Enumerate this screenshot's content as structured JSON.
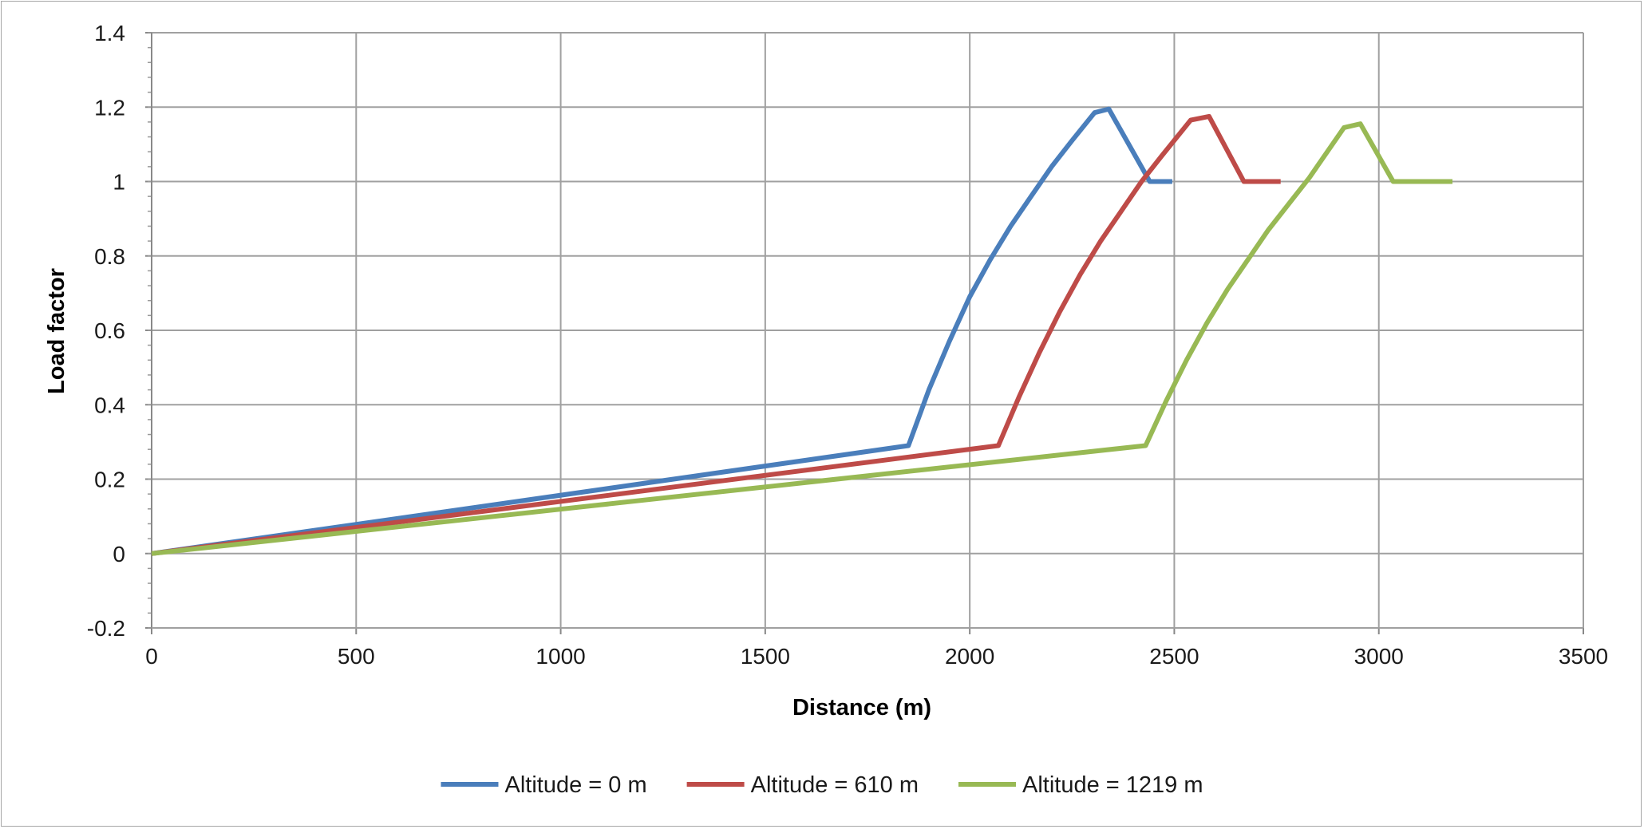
{
  "chart_data": {
    "type": "line",
    "title": "",
    "xlabel": "Distance (m)",
    "ylabel": "Load factor",
    "xlim": [
      0,
      3500
    ],
    "ylim": [
      -0.2,
      1.4
    ],
    "xticks": [
      0,
      500,
      1000,
      1500,
      2000,
      2500,
      3000,
      3500
    ],
    "yticks": [
      -0.2,
      0,
      0.2,
      0.4,
      0.6,
      0.8,
      1,
      1.2,
      1.4
    ],
    "xtick_labels": [
      "0",
      "500",
      "1000",
      "1500",
      "2000",
      "2500",
      "3000",
      "3500"
    ],
    "ytick_labels": [
      "-0.2",
      "0",
      "0.2",
      "0.4",
      "0.6",
      "0.8",
      "1",
      "1.2",
      "1.4"
    ],
    "grid": true,
    "legend_position": "bottom",
    "series": [
      {
        "name": "Altitude = 0 m",
        "color": "#4a7ebb",
        "x": [
          0,
          1850,
          1900,
          1950,
          2000,
          2050,
          2100,
          2150,
          2200,
          2250,
          2305,
          2340,
          2440,
          2495
        ],
        "y": [
          0,
          0.29,
          0.44,
          0.57,
          0.69,
          0.79,
          0.88,
          0.96,
          1.04,
          1.11,
          1.185,
          1.195,
          1.0,
          1.0
        ]
      },
      {
        "name": "Altitude = 610 m",
        "color": "#be4b48",
        "x": [
          0,
          2070,
          2120,
          2170,
          2220,
          2270,
          2320,
          2370,
          2420,
          2470,
          2540,
          2585,
          2670,
          2760
        ],
        "y": [
          0,
          0.29,
          0.42,
          0.54,
          0.65,
          0.75,
          0.84,
          0.92,
          1.0,
          1.07,
          1.165,
          1.175,
          1.0,
          1.0
        ]
      },
      {
        "name": "Altitude = 1219 m",
        "color": "#98b954",
        "x": [
          0,
          2430,
          2480,
          2530,
          2580,
          2630,
          2680,
          2730,
          2780,
          2830,
          2915,
          2955,
          3035,
          3180
        ],
        "y": [
          0,
          0.29,
          0.41,
          0.52,
          0.62,
          0.71,
          0.79,
          0.87,
          0.94,
          1.01,
          1.145,
          1.155,
          1.0,
          1.0
        ]
      }
    ]
  }
}
